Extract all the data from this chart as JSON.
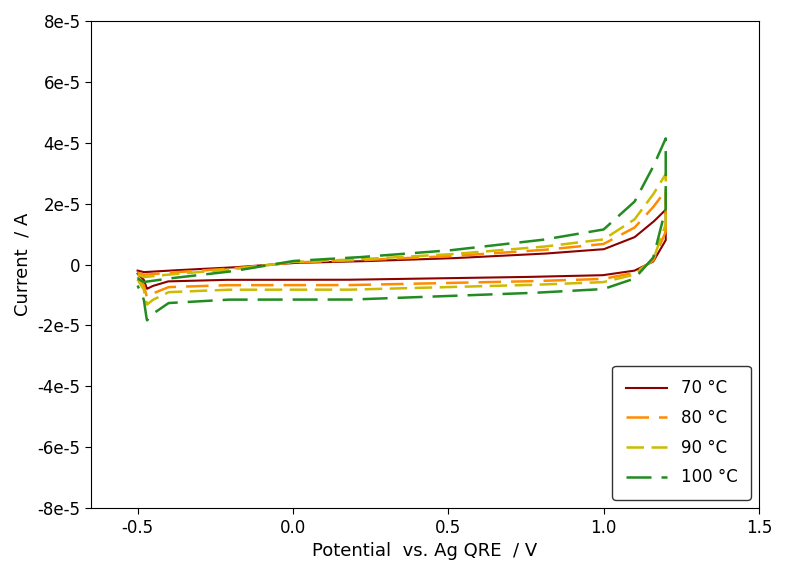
{
  "xlabel": "Potential  vs. Ag QRE  / V",
  "ylabel": "Current  / A",
  "xlim": [
    -0.65,
    1.5
  ],
  "ylim": [
    -8e-05,
    8e-05
  ],
  "xticks": [
    -0.5,
    0.0,
    0.5,
    1.0,
    1.5
  ],
  "ytick_vals": [
    -8e-05,
    -6e-05,
    -4e-05,
    -2e-05,
    0,
    2e-05,
    4e-05,
    6e-05,
    8e-05
  ],
  "ytick_labels": [
    "-8e-5",
    "-6e-5",
    "-4e-5",
    "-2e-5",
    "0",
    "2e-5",
    "4e-5",
    "6e-5",
    "8e-5"
  ],
  "curves": [
    {
      "label": "70 °C",
      "color": "#8B0000",
      "linestyle": "solid",
      "linewidth": 1.5,
      "dashes": []
    },
    {
      "label": "80 °C",
      "color": "#FF8C00",
      "linestyle": "dashed",
      "linewidth": 1.8,
      "dashes": [
        9,
        4
      ]
    },
    {
      "label": "90 °C",
      "color": "#CCBB00",
      "linestyle": "dashed",
      "linewidth": 1.8,
      "dashes": [
        7,
        3
      ]
    },
    {
      "label": "100 °C",
      "color": "#228B22",
      "linestyle": "dashed",
      "linewidth": 1.8,
      "dashes": [
        10,
        4
      ]
    }
  ],
  "background_color": "#ffffff",
  "legend_loc": "lower right",
  "font_size": 13,
  "tick_fontsize": 12
}
